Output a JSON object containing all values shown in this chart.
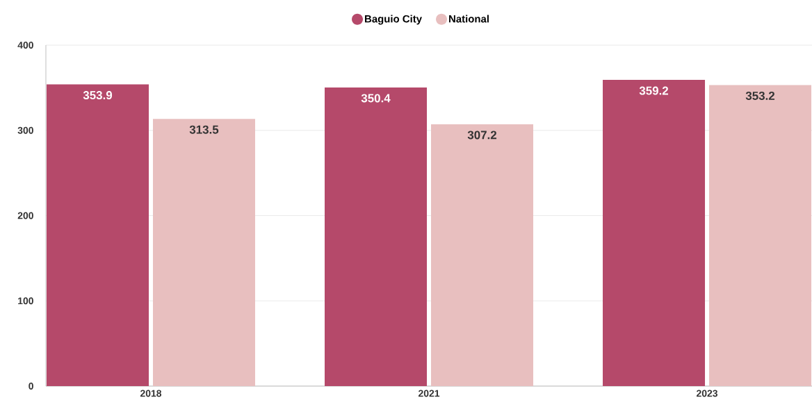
{
  "chart_data": {
    "type": "bar",
    "categories": [
      "2018",
      "2021",
      "2023"
    ],
    "series": [
      {
        "name": "Baguio City",
        "color": "#b5496a",
        "values": [
          353.9,
          350.4,
          359.2
        ]
      },
      {
        "name": "National",
        "color": "#e8bfbf",
        "values": [
          313.5,
          307.2,
          353.2
        ]
      }
    ],
    "ylim": [
      0,
      400
    ],
    "yticks": [
      0,
      100,
      200,
      300,
      400
    ],
    "grid": "y",
    "legend": "top",
    "data_labels": true
  }
}
